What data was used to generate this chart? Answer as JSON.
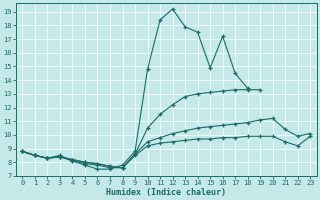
{
  "xlabel": "Humidex (Indice chaleur)",
  "xlim": [
    -0.5,
    23.5
  ],
  "ylim": [
    7.0,
    19.6
  ],
  "xticks": [
    0,
    1,
    2,
    3,
    4,
    5,
    6,
    7,
    8,
    9,
    10,
    11,
    12,
    13,
    14,
    15,
    16,
    17,
    18,
    19,
    20,
    21,
    22,
    23
  ],
  "yticks": [
    7,
    8,
    9,
    10,
    11,
    12,
    13,
    14,
    15,
    16,
    17,
    18,
    19
  ],
  "bg_color": "#c5e8e8",
  "line_color": "#1a6b6b",
  "lines": [
    [
      0,
      8.8,
      1,
      8.5,
      2,
      8.3,
      3,
      8.5,
      4,
      8.1,
      5,
      7.8,
      6,
      7.5,
      7,
      7.5,
      8,
      7.8,
      9,
      8.8,
      10,
      14.8,
      11,
      18.4,
      12,
      19.2,
      13,
      17.9,
      14,
      17.5,
      15,
      14.9,
      16,
      17.2,
      17,
      14.5,
      18,
      13.4
    ],
    [
      0,
      8.8,
      1,
      8.5,
      2,
      8.3,
      3,
      8.4,
      4,
      8.2,
      5,
      8.0,
      6,
      7.9,
      7,
      7.7,
      8,
      7.6,
      9,
      8.6,
      10,
      10.5,
      11,
      11.5,
      12,
      12.2,
      13,
      12.8,
      14,
      13.0,
      15,
      13.1,
      16,
      13.2,
      17,
      13.3,
      18,
      13.3,
      19,
      13.3
    ],
    [
      0,
      8.8,
      1,
      8.5,
      2,
      8.3,
      3,
      8.4,
      4,
      8.2,
      5,
      8.0,
      6,
      7.9,
      7,
      7.7,
      8,
      7.6,
      9,
      8.6,
      10,
      9.5,
      11,
      9.8,
      12,
      10.1,
      13,
      10.3,
      14,
      10.5,
      15,
      10.6,
      16,
      10.7,
      17,
      10.8,
      18,
      10.9,
      19,
      11.1,
      20,
      11.2,
      21,
      10.4,
      22,
      9.9,
      23,
      10.1
    ],
    [
      0,
      8.8,
      1,
      8.5,
      2,
      8.3,
      3,
      8.4,
      4,
      8.1,
      5,
      7.9,
      6,
      7.8,
      7,
      7.6,
      8,
      7.6,
      9,
      8.5,
      10,
      9.2,
      11,
      9.4,
      12,
      9.5,
      13,
      9.6,
      14,
      9.7,
      15,
      9.7,
      16,
      9.8,
      17,
      9.8,
      18,
      9.9,
      19,
      9.9,
      20,
      9.9,
      21,
      9.5,
      22,
      9.2,
      23,
      9.9
    ]
  ]
}
